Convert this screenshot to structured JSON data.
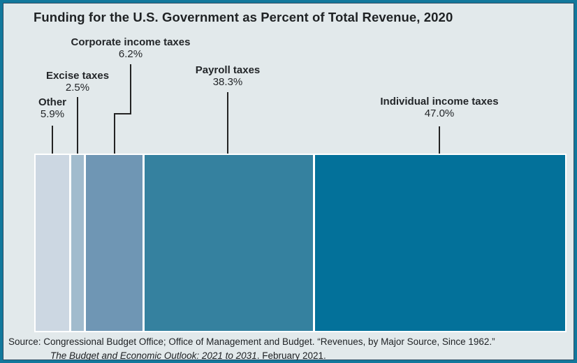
{
  "title": "Funding for the U.S. Government as Percent of Total Revenue, 2020",
  "frame": {
    "border_color": "#12789c",
    "inner_line_color": "#2c4b63",
    "background": "#e2e9eb"
  },
  "chart_data": {
    "type": "bar",
    "variant": "single-horizontal-stacked",
    "title": "Funding for the U.S. Government as Percent of Total Revenue, 2020",
    "categories": [
      "Other",
      "Excise taxes",
      "Corporate income taxes",
      "Payroll taxes",
      "Individual income taxes"
    ],
    "values": [
      5.9,
      2.5,
      6.2,
      38.3,
      47.0
    ],
    "unit": "percent of total revenue",
    "colors": [
      "#ccd7e2",
      "#a1bbcd",
      "#6f96b4",
      "#35819f",
      "#03719a"
    ],
    "leader_line_color": "#232323",
    "legend": "none",
    "grid": false,
    "source": "Source: Congressional Budget Office; Office of Management and Budget. “Revenues, by Major Source, Since 1962.” The Budget and Economic Outlook: 2021 to 2031. February 2021."
  },
  "labels": {
    "other": {
      "name": "Other",
      "value": "5.9%"
    },
    "excise": {
      "name": "Excise taxes",
      "value": "2.5%"
    },
    "corporate": {
      "name": "Corporate income taxes",
      "value": "6.2%"
    },
    "payroll": {
      "name": "Payroll taxes",
      "value": "38.3%"
    },
    "individual": {
      "name": "Individual income taxes",
      "value": "47.0%"
    }
  },
  "source": {
    "line1": "Source: Congressional Budget Office; Office of Management and Budget. “Revenues, by Major Source, Since 1962.”",
    "line2_italic": "The Budget and Economic Outlook: 2021 to 2031",
    "line2_rest": ". February 2021."
  }
}
